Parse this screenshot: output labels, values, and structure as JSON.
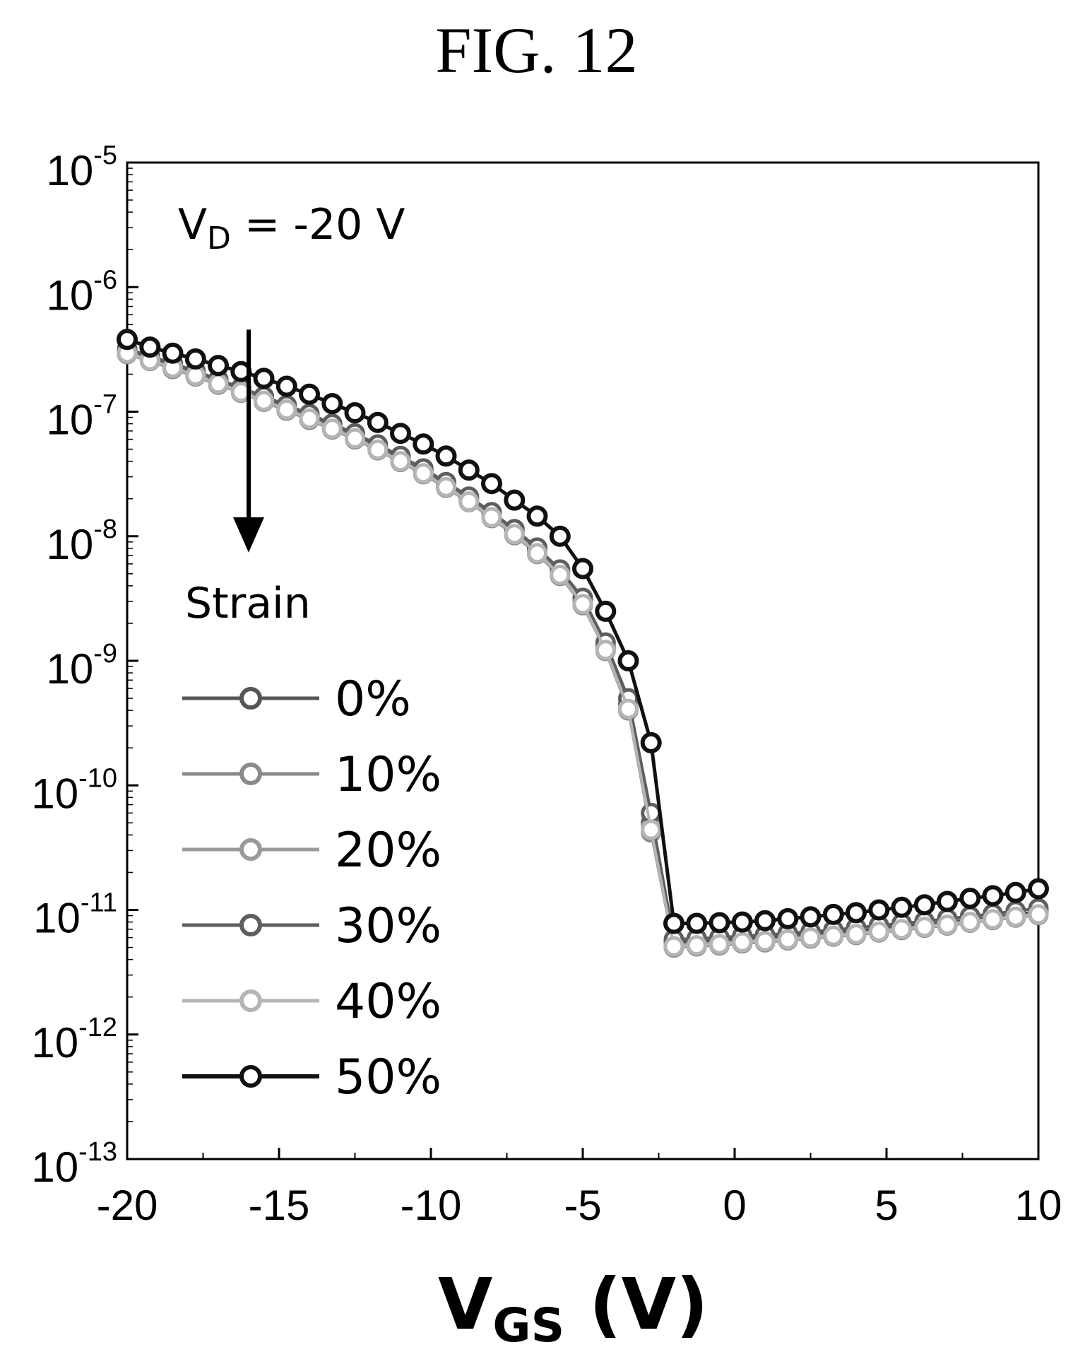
{
  "figure_label": "FIG. 12",
  "colors": {
    "0%": "#555555",
    "10%": "#8a8a8a",
    "20%": "#9a9a9a",
    "30%": "#5e5e5e",
    "40%": "#b5b5b5",
    "50%": "#111111"
  },
  "chart_data": {
    "type": "line",
    "title": "",
    "xlabel_main": "V",
    "xlabel_sub": "GS",
    "xlabel_tail": " (V)",
    "ylabel": "",
    "xlim": [
      -20,
      10
    ],
    "ylim": [
      1e-13,
      1e-05
    ],
    "yscale": "log",
    "x_ticks": [
      -20,
      -15,
      -10,
      -5,
      0,
      5,
      10
    ],
    "y_ticks": [
      {
        "base": "10",
        "exp": "-13",
        "value": 1e-13
      },
      {
        "base": "10",
        "exp": "-12",
        "value": 1e-12
      },
      {
        "base": "10",
        "exp": "-11",
        "value": 1e-11
      },
      {
        "base": "10",
        "exp": "-10",
        "value": 1e-10
      },
      {
        "base": "10",
        "exp": "-9",
        "value": 1e-09
      },
      {
        "base": "10",
        "exp": "-8",
        "value": 1e-08
      },
      {
        "base": "10",
        "exp": "-7",
        "value": 1e-07
      },
      {
        "base": "10",
        "exp": "-6",
        "value": 1e-06
      },
      {
        "base": "10",
        "exp": "-5",
        "value": 1e-05
      }
    ],
    "annotation": {
      "prefix": "V",
      "sub": "D",
      "suffix": " = -20 V"
    },
    "legend_title": "Strain",
    "legend_position": "lower-left",
    "arrow": {
      "x": -16.0,
      "y_from": 4e-07,
      "y_to": 8e-09
    },
    "grid": false,
    "x": [
      -20,
      -19.25,
      -18.5,
      -17.75,
      -17,
      -16.25,
      -15.5,
      -14.75,
      -14,
      -13.25,
      -12.5,
      -11.75,
      -11,
      -10.25,
      -9.5,
      -8.75,
      -8,
      -7.25,
      -6.5,
      -5.75,
      -5,
      -4.25,
      -3.5,
      -2.75,
      -2.0,
      -1.25,
      -0.5,
      0.25,
      1.0,
      1.75,
      2.5,
      3.25,
      4.0,
      4.75,
      5.5,
      6.25,
      7.0,
      7.75,
      8.5,
      9.25,
      10.0
    ],
    "series": [
      {
        "name": "0%",
        "values": [
          3.1e-07,
          2.7e-07,
          2.35e-07,
          2.05e-07,
          1.75e-07,
          1.5e-07,
          1.28e-07,
          1.08e-07,
          9.2e-08,
          7.7e-08,
          6.4e-08,
          5.2e-08,
          4.2e-08,
          3.35e-08,
          2.6e-08,
          2e-08,
          1.5e-08,
          1.1e-08,
          7.8e-09,
          5.2e-09,
          3e-09,
          1.3e-09,
          4.5e-10,
          5e-11,
          5.5e-12,
          5.6e-12,
          5.7e-12,
          5.9e-12,
          6e-12,
          6.2e-12,
          6.4e-12,
          6.6e-12,
          6.8e-12,
          7.1e-12,
          7.4e-12,
          7.7e-12,
          8e-12,
          8.4e-12,
          8.8e-12,
          9.2e-12,
          9.7e-12
        ]
      },
      {
        "name": "10%",
        "values": [
          2.9e-07,
          2.55e-07,
          2.2e-07,
          1.92e-07,
          1.65e-07,
          1.42e-07,
          1.2e-07,
          1.02e-07,
          8.6e-08,
          7.2e-08,
          6e-08,
          4.9e-08,
          3.95e-08,
          3.15e-08,
          2.45e-08,
          1.88e-08,
          1.4e-08,
          1.02e-08,
          7.2e-09,
          4.8e-09,
          2.8e-09,
          1.2e-09,
          4e-10,
          4.2e-11,
          5e-12,
          5.1e-12,
          5.2e-12,
          5.4e-12,
          5.5e-12,
          5.7e-12,
          5.9e-12,
          6.1e-12,
          6.3e-12,
          6.6e-12,
          6.9e-12,
          7.2e-12,
          7.5e-12,
          7.9e-12,
          8.3e-12,
          8.7e-12,
          9.1e-12
        ]
      },
      {
        "name": "20%",
        "values": [
          3e-07,
          2.6e-07,
          2.28e-07,
          1.98e-07,
          1.7e-07,
          1.46e-07,
          1.24e-07,
          1.05e-07,
          8.9e-08,
          7.4e-08,
          6.2e-08,
          5.05e-08,
          4.05e-08,
          3.25e-08,
          2.52e-08,
          1.94e-08,
          1.45e-08,
          1.06e-08,
          7.5e-09,
          5e-09,
          2.9e-09,
          1.25e-09,
          4.2e-10,
          4.6e-11,
          5.2e-12,
          5.3e-12,
          5.4e-12,
          5.6e-12,
          5.7e-12,
          5.9e-12,
          6.1e-12,
          6.3e-12,
          6.5e-12,
          6.8e-12,
          7.1e-12,
          7.4e-12,
          7.7e-12,
          8.1e-12,
          8.5e-12,
          8.9e-12,
          9.3e-12
        ]
      },
      {
        "name": "30%",
        "values": [
          3.2e-07,
          2.8e-07,
          2.45e-07,
          2.12e-07,
          1.82e-07,
          1.56e-07,
          1.33e-07,
          1.13e-07,
          9.6e-08,
          8e-08,
          6.7e-08,
          5.45e-08,
          4.4e-08,
          3.5e-08,
          2.72e-08,
          2.08e-08,
          1.56e-08,
          1.14e-08,
          8.1e-09,
          5.4e-09,
          3.2e-09,
          1.4e-09,
          5e-10,
          6e-11,
          5.8e-12,
          5.9e-12,
          6e-12,
          6.2e-12,
          6.3e-12,
          6.5e-12,
          6.7e-12,
          6.9e-12,
          7.2e-12,
          7.5e-12,
          7.8e-12,
          8.1e-12,
          8.5e-12,
          8.9e-12,
          9.3e-12,
          9.8e-12,
          1.03e-11
        ]
      },
      {
        "name": "40%",
        "values": [
          2.95e-07,
          2.58e-07,
          2.25e-07,
          1.95e-07,
          1.68e-07,
          1.44e-07,
          1.22e-07,
          1.04e-07,
          8.8e-08,
          7.3e-08,
          6.1e-08,
          4.95e-08,
          4e-08,
          3.2e-08,
          2.48e-08,
          1.9e-08,
          1.42e-08,
          1.04e-08,
          7.3e-09,
          4.9e-09,
          2.85e-09,
          1.22e-09,
          4.1e-10,
          4.4e-11,
          5.1e-12,
          5.2e-12,
          5.3e-12,
          5.5e-12,
          5.6e-12,
          5.8e-12,
          6e-12,
          6.2e-12,
          6.4e-12,
          6.7e-12,
          7e-12,
          7.3e-12,
          7.6e-12,
          8e-12,
          8.4e-12,
          8.8e-12,
          9.2e-12
        ]
      },
      {
        "name": "50%",
        "values": [
          3.8e-07,
          3.3e-07,
          2.95e-07,
          2.65e-07,
          2.35e-07,
          2.1e-07,
          1.85e-07,
          1.6e-07,
          1.38e-07,
          1.16e-07,
          9.8e-08,
          8.2e-08,
          6.7e-08,
          5.5e-08,
          4.4e-08,
          3.4e-08,
          2.65e-08,
          1.95e-08,
          1.45e-08,
          1e-08,
          5.5e-09,
          2.5e-09,
          1e-09,
          2.2e-10,
          7.8e-12,
          7.8e-12,
          7.9e-12,
          8e-12,
          8.2e-12,
          8.5e-12,
          8.8e-12,
          9.2e-12,
          9.5e-12,
          1e-11,
          1.05e-11,
          1.1e-11,
          1.17e-11,
          1.24e-11,
          1.3e-11,
          1.38e-11,
          1.48e-11
        ]
      }
    ]
  }
}
